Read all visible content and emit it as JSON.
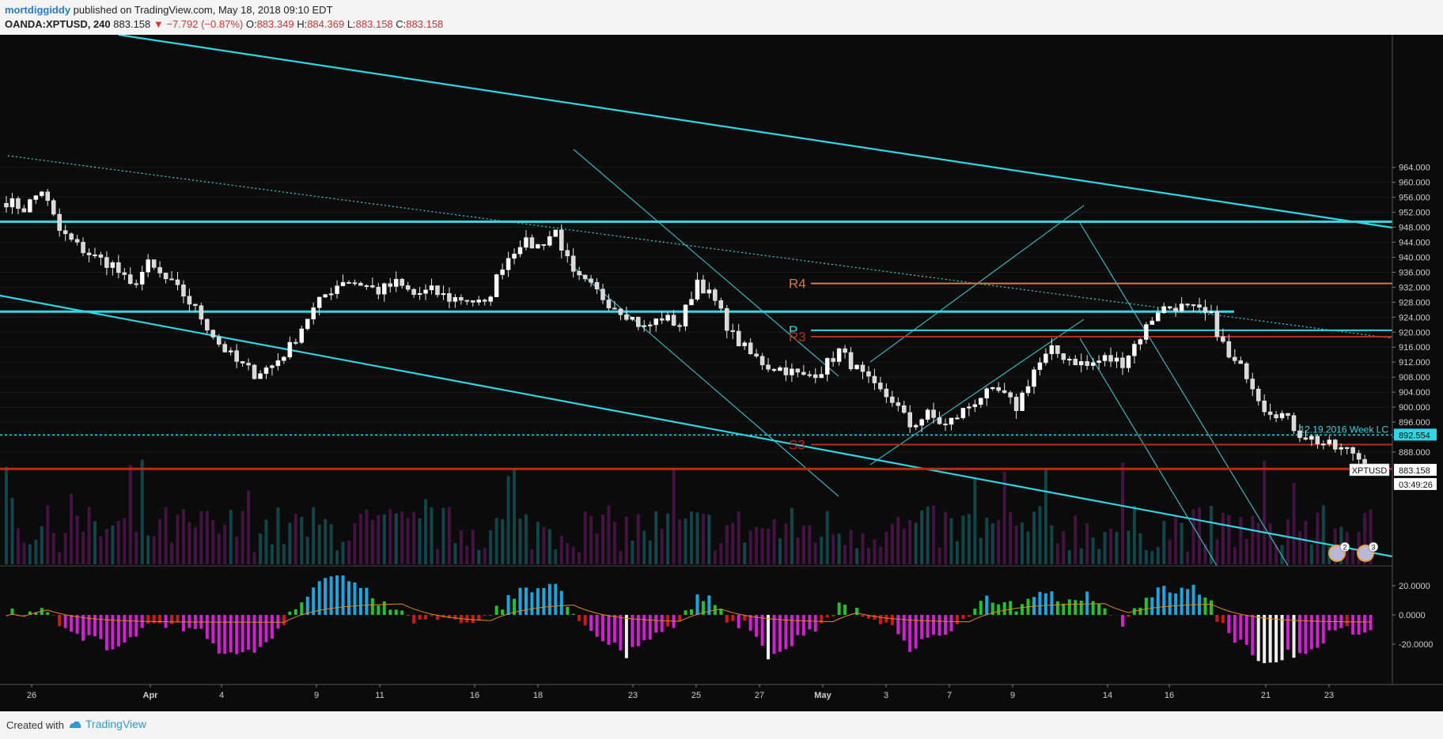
{
  "header": {
    "author": "mortdiggiddy",
    "published": " published on TradingView.com, May 18, 2018 09:10 EDT",
    "symbol": "OANDA:XPTUSD, 240",
    "last": "883.158",
    "change": "▼ −7.792 (−0.87%)",
    "o_label": "O:",
    "o_val": "883.349",
    "h_label": "H:",
    "h_val": "884.369",
    "l_label": "L:",
    "l_val": "883.158",
    "c_label": "C:",
    "c_val": "883.158"
  },
  "footer": {
    "created_with": "Created with",
    "brand": "TradingView"
  },
  "colors": {
    "background": "#0b0b0b",
    "cyan": "#2fd7e6",
    "orange": "#e0783a",
    "dark_red": "#b0301c",
    "bull_bar": "#22c22c",
    "bear_bar": "#d21fd2",
    "strong_bull": "#1aa7e0",
    "red_bar": "#d01818",
    "signal": "#e08a20"
  },
  "chart_data": {
    "type": "candlestick",
    "symbol": "XPTUSD",
    "timeframe": "240",
    "x_ticks": [
      "26",
      "Apr",
      "4",
      "9",
      "11",
      "16",
      "18",
      "23",
      "25",
      "27",
      "May",
      "3",
      "7",
      "9",
      "14",
      "16",
      "21",
      "23"
    ],
    "y_ticks": [
      "964.000",
      "960.000",
      "956.000",
      "952.000",
      "948.000",
      "944.000",
      "940.000",
      "936.000",
      "932.000",
      "928.000",
      "924.000",
      "920.000",
      "916.000",
      "912.000",
      "908.000",
      "904.000",
      "900.000",
      "896.000",
      "892.000",
      "888.000"
    ],
    "ylim": [
      880,
      966
    ],
    "close_path": [
      [
        0,
        955
      ],
      [
        3,
        953
      ],
      [
        6,
        958
      ],
      [
        9,
        947
      ],
      [
        12,
        943
      ],
      [
        15,
        940
      ],
      [
        18,
        938
      ],
      [
        21,
        932
      ],
      [
        24,
        938
      ],
      [
        27,
        934
      ],
      [
        30,
        930
      ],
      [
        33,
        924
      ],
      [
        36,
        917
      ],
      [
        39,
        912
      ],
      [
        42,
        909
      ],
      [
        45,
        911
      ],
      [
        48,
        916
      ],
      [
        51,
        924
      ],
      [
        54,
        930
      ],
      [
        57,
        934
      ],
      [
        60,
        933
      ],
      [
        63,
        931
      ],
      [
        66,
        933
      ],
      [
        69,
        930
      ],
      [
        72,
        931
      ],
      [
        75,
        929
      ],
      [
        78,
        929
      ],
      [
        81,
        927
      ],
      [
        84,
        938
      ],
      [
        87,
        944
      ],
      [
        90,
        943
      ],
      [
        93,
        947
      ],
      [
        96,
        935
      ],
      [
        99,
        932
      ],
      [
        102,
        928
      ],
      [
        105,
        925
      ],
      [
        108,
        921
      ],
      [
        111,
        924
      ],
      [
        114,
        922
      ],
      [
        117,
        934
      ],
      [
        120,
        928
      ],
      [
        123,
        919
      ],
      [
        126,
        914
      ],
      [
        129,
        911
      ],
      [
        132,
        910
      ],
      [
        135,
        908
      ],
      [
        138,
        910
      ],
      [
        141,
        915
      ],
      [
        144,
        910
      ],
      [
        147,
        905
      ],
      [
        150,
        902
      ],
      [
        153,
        895
      ],
      [
        156,
        898
      ],
      [
        159,
        895
      ],
      [
        162,
        899
      ],
      [
        165,
        903
      ],
      [
        168,
        904
      ],
      [
        171,
        900
      ],
      [
        174,
        910
      ],
      [
        177,
        915
      ],
      [
        180,
        913
      ],
      [
        183,
        911
      ],
      [
        186,
        913
      ],
      [
        189,
        912
      ],
      [
        192,
        919
      ],
      [
        195,
        926
      ],
      [
        198,
        927
      ],
      [
        201,
        926
      ],
      [
        204,
        924
      ],
      [
        207,
        913
      ],
      [
        210,
        909
      ],
      [
        213,
        900
      ],
      [
        216,
        898
      ],
      [
        219,
        893
      ],
      [
        222,
        891
      ],
      [
        225,
        889
      ],
      [
        228,
        888
      ],
      [
        231,
        883
      ]
    ],
    "horizontal_levels": [
      {
        "price": 949.5,
        "label": ""
      },
      {
        "price": 925.5,
        "label": ""
      },
      {
        "price": 933.0,
        "label": "R4"
      },
      {
        "price": 920.5,
        "label": "P"
      },
      {
        "price": 918.8,
        "label": "R3"
      },
      {
        "price": 892.554,
        "label": "12.19.2016 Week LC"
      },
      {
        "price": 890.0,
        "label": "S3"
      },
      {
        "price": 883.5,
        "label": ""
      }
    ],
    "price_tags": [
      {
        "label": "",
        "value": "892.554"
      },
      {
        "label": "XPTUSD",
        "value": "883.158"
      },
      {
        "label": "",
        "value": "03:49:26"
      }
    ],
    "event_badges": [
      "2",
      "3"
    ],
    "oscillator": {
      "y_ticks": [
        "20.0000",
        "0.0000",
        "-20.0000"
      ],
      "ylim": [
        -34,
        28
      ]
    }
  }
}
